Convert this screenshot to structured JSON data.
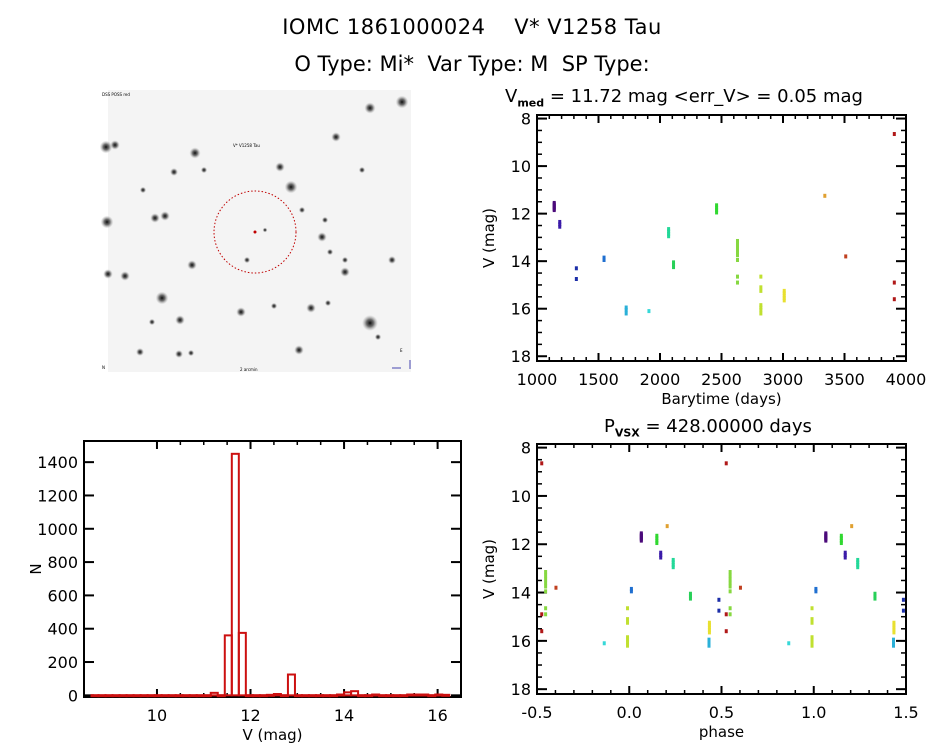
{
  "header": {
    "line1": "IOMC 1861000024    V* V1258 Tau",
    "line2": "O Type: Mi*  Var Type: M  SP Type:"
  },
  "finder_chart": {
    "label_top_left": "DSS POSS red",
    "label_target": "V* V1258 Tau",
    "label_bottom_left": "N",
    "label_bottom_center": "2 arcmin",
    "label_bottom_right": "E",
    "circle_color": "#c00000"
  },
  "chart_data": [
    {
      "id": "lightcurve",
      "type": "scatter",
      "title_main": "V",
      "title_sub": "med",
      "title_rest": " = 11.72 mag <err_V> = 0.05 mag",
      "xlabel": "Barytime (days)",
      "ylabel": "V (mag)",
      "xlim": [
        1000,
        4000
      ],
      "ylim": [
        7.85,
        18.2
      ],
      "y_inverted": true,
      "xticks": [
        1000,
        1500,
        2000,
        2500,
        3000,
        3500,
        4000
      ],
      "yticks": [
        8,
        10,
        12,
        14,
        16,
        18
      ],
      "groups": [
        {
          "color": "#4b0a7a",
          "x": 1140,
          "v": [
            11.55,
            11.6,
            11.65,
            11.7,
            11.75,
            11.8,
            11.85
          ]
        },
        {
          "color": "#3a1aa8",
          "x": 1185,
          "v": [
            12.35,
            12.45,
            12.55
          ]
        },
        {
          "color": "#1c2ea8",
          "x": 1320,
          "v": [
            14.3,
            14.75
          ]
        },
        {
          "color": "#1f6fd0",
          "x": 1545,
          "v": [
            13.85,
            13.95
          ]
        },
        {
          "color": "#2ab0d8",
          "x": 1725,
          "v": [
            15.95,
            16.05,
            16.2
          ]
        },
        {
          "color": "#36d8d8",
          "x": 1910,
          "v": [
            16.1
          ]
        },
        {
          "color": "#22d898",
          "x": 2070,
          "v": [
            12.65,
            12.75,
            12.85,
            12.95
          ]
        },
        {
          "color": "#28d058",
          "x": 2110,
          "v": [
            14.05,
            14.15,
            14.25
          ]
        },
        {
          "color": "#30d830",
          "x": 2460,
          "v": [
            11.65,
            11.75,
            11.85,
            11.95
          ]
        },
        {
          "color": "#86d840",
          "x": 2630,
          "v": [
            13.15,
            13.3,
            13.45,
            13.6,
            13.75,
            13.95,
            14.65,
            14.9
          ]
        },
        {
          "color": "#c0e030",
          "x": 2820,
          "v": [
            14.65,
            15.1,
            15.25,
            15.85,
            15.95,
            16.05,
            16.2
          ]
        },
        {
          "color": "#e8e030",
          "x": 3010,
          "v": [
            15.25,
            15.35,
            15.45,
            15.55,
            15.65
          ]
        },
        {
          "color": "#e0a030",
          "x": 3340,
          "v": [
            11.25
          ]
        },
        {
          "color": "#c04020",
          "x": 3510,
          "v": [
            13.8
          ]
        },
        {
          "color": "#b01818",
          "x": 3905,
          "v": [
            8.65,
            14.9,
            15.6
          ]
        }
      ]
    },
    {
      "id": "histogram",
      "type": "bar",
      "xlabel": "V (mag)",
      "ylabel": "N",
      "xlim": [
        8.44,
        16.5
      ],
      "ylim": [
        -10,
        1527
      ],
      "xticks": [
        10,
        12,
        14,
        16
      ],
      "yticks": [
        0,
        200,
        400,
        600,
        800,
        1000,
        1200,
        1400
      ],
      "bin_width": 0.15,
      "bar_color": "#cc1010",
      "bins": [
        {
          "x": 8.6,
          "n": 1
        },
        {
          "x": 8.75,
          "n": 1
        },
        {
          "x": 8.9,
          "n": 1
        },
        {
          "x": 9.05,
          "n": 1
        },
        {
          "x": 9.2,
          "n": 1
        },
        {
          "x": 9.35,
          "n": 1
        },
        {
          "x": 9.5,
          "n": 1
        },
        {
          "x": 9.65,
          "n": 1
        },
        {
          "x": 9.8,
          "n": 1
        },
        {
          "x": 9.95,
          "n": 1
        },
        {
          "x": 10.1,
          "n": 1
        },
        {
          "x": 10.25,
          "n": 1
        },
        {
          "x": 10.4,
          "n": 1
        },
        {
          "x": 10.55,
          "n": 1
        },
        {
          "x": 10.7,
          "n": 1
        },
        {
          "x": 10.85,
          "n": 1
        },
        {
          "x": 11.0,
          "n": 1
        },
        {
          "x": 11.15,
          "n": 15
        },
        {
          "x": 11.3,
          "n": 1
        },
        {
          "x": 11.45,
          "n": 360
        },
        {
          "x": 11.6,
          "n": 1450
        },
        {
          "x": 11.75,
          "n": 375
        },
        {
          "x": 11.9,
          "n": 1
        },
        {
          "x": 12.05,
          "n": 1
        },
        {
          "x": 12.2,
          "n": 1
        },
        {
          "x": 12.35,
          "n": 3
        },
        {
          "x": 12.5,
          "n": 8
        },
        {
          "x": 12.65,
          "n": 1
        },
        {
          "x": 12.8,
          "n": 125
        },
        {
          "x": 12.95,
          "n": 1
        },
        {
          "x": 13.1,
          "n": 1
        },
        {
          "x": 13.25,
          "n": 1
        },
        {
          "x": 13.4,
          "n": 1
        },
        {
          "x": 13.55,
          "n": 1
        },
        {
          "x": 13.7,
          "n": 1
        },
        {
          "x": 13.85,
          "n": 5
        },
        {
          "x": 14.0,
          "n": 18
        },
        {
          "x": 14.15,
          "n": 25
        },
        {
          "x": 14.3,
          "n": 1
        },
        {
          "x": 14.45,
          "n": 1
        },
        {
          "x": 14.6,
          "n": 5
        },
        {
          "x": 14.75,
          "n": 1
        },
        {
          "x": 14.9,
          "n": 1
        },
        {
          "x": 15.05,
          "n": 1
        },
        {
          "x": 15.2,
          "n": 1
        },
        {
          "x": 15.35,
          "n": 5
        },
        {
          "x": 15.5,
          "n": 5
        },
        {
          "x": 15.65,
          "n": 5
        },
        {
          "x": 15.8,
          "n": 1
        },
        {
          "x": 15.95,
          "n": 5
        },
        {
          "x": 16.1,
          "n": 3
        }
      ]
    },
    {
      "id": "phased",
      "type": "scatter",
      "title_main": "P",
      "title_sub": "VSX",
      "title_rest": " = 428.00000 days",
      "xlabel": "phase",
      "ylabel": "V (mag)",
      "xlim": [
        -0.5,
        1.5
      ],
      "ylim": [
        7.85,
        18.2
      ],
      "y_inverted": true,
      "xticks": [
        -0.5,
        0.0,
        0.5,
        1.0,
        1.5
      ],
      "ytick_labels": [
        "8",
        "10",
        "12",
        "14",
        "16",
        "18"
      ],
      "xtick_labels": [
        "-0.5",
        "0.0",
        "0.5",
        "1.0",
        "1.5"
      ],
      "yticks": [
        8,
        10,
        12,
        14,
        16,
        18
      ],
      "period_days": 428.0,
      "epoch_days": 1112,
      "repeat": true
    }
  ]
}
